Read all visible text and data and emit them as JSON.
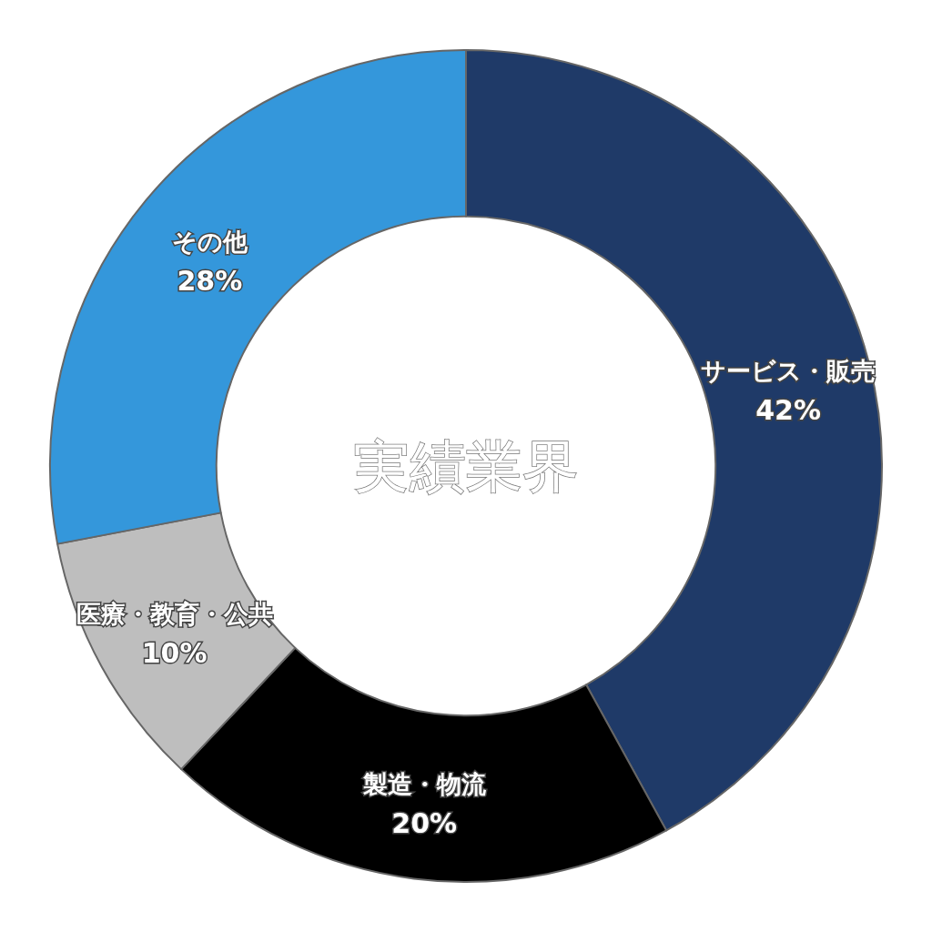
{
  "chart_data": {
    "type": "donut",
    "title": "実績業界",
    "categories": [
      "サービス・販売",
      "製造・物流",
      "医療・教育・公共",
      "その他"
    ],
    "values": [
      42,
      20,
      10,
      28
    ],
    "colors": [
      "#1f3a68",
      "#000000",
      "#bebebe",
      "#3497db"
    ],
    "value_labels": [
      "42%",
      "20%",
      "10%",
      "28%"
    ]
  }
}
